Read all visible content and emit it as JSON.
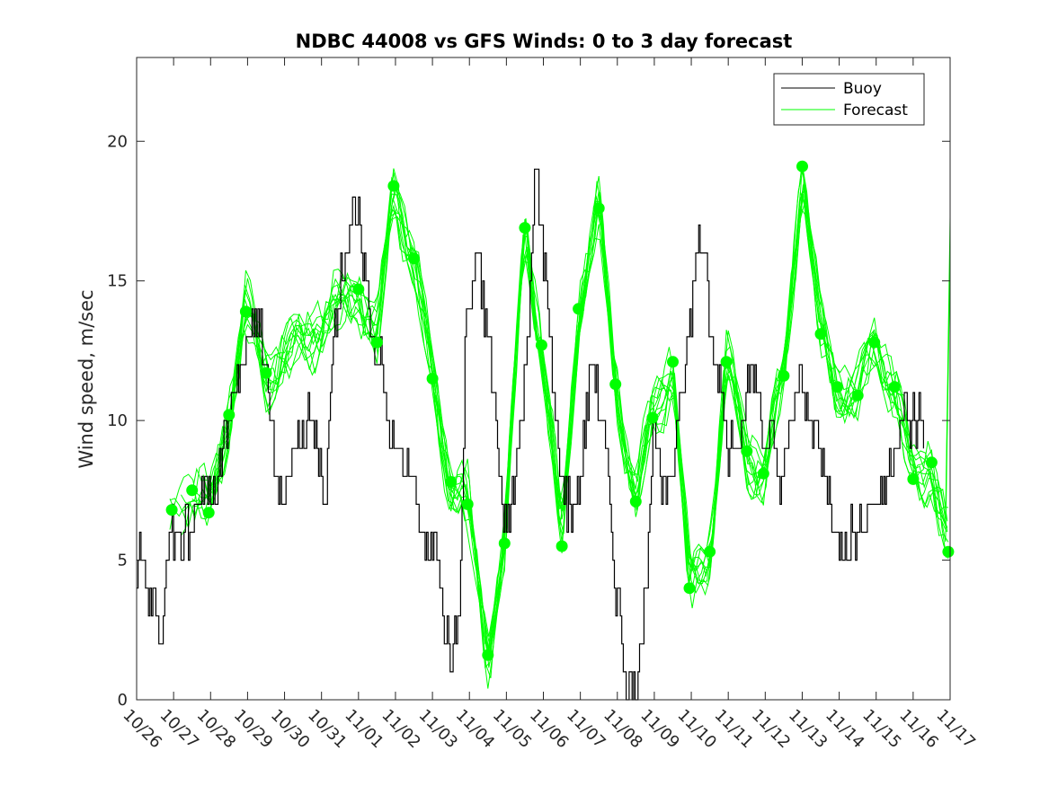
{
  "chart_data": {
    "type": "line",
    "title": "NDBC 44008 vs GFS Winds: 0 to 3 day forecast",
    "xlabel": "",
    "ylabel": "Wind speed, m/sec",
    "xlim": [
      0,
      22
    ],
    "ylim": [
      0,
      23
    ],
    "y_ticks": [
      0,
      5,
      10,
      15,
      20
    ],
    "x_tick_labels": [
      "10/26",
      "10/27",
      "10/28",
      "10/29",
      "10/30",
      "10/31",
      "11/01",
      "11/02",
      "11/03",
      "11/04",
      "11/05",
      "11/06",
      "11/07",
      "11/08",
      "11/09",
      "11/10",
      "11/11",
      "11/12",
      "11/13",
      "11/14",
      "11/15",
      "11/16",
      "11/17"
    ],
    "legend": {
      "placement": "top-right",
      "entries": [
        "Buoy",
        "Forecast"
      ]
    },
    "colors": {
      "buoy": "#000000",
      "forecast": "#00ff00",
      "markers": "#00ff00"
    },
    "buoy_trend": {
      "x": [
        0,
        0.1,
        0.2,
        0.35,
        0.5,
        0.6,
        0.65,
        0.72,
        0.8,
        1.0,
        1.2,
        1.5,
        1.8,
        2.0,
        2.5,
        3.0,
        3.2,
        3.4,
        3.6,
        3.8,
        4.0,
        4.3,
        4.6,
        4.8,
        5.0,
        5.1,
        5.2,
        5.3,
        5.5,
        5.8,
        6.0,
        6.2,
        6.4,
        6.6,
        6.8,
        7.0,
        7.3,
        7.6,
        7.9,
        8.1,
        8.3,
        8.5,
        8.6,
        8.7,
        8.8,
        8.9,
        9.0,
        9.2,
        9.4,
        9.6,
        9.8,
        10.0,
        10.2,
        10.4,
        10.6,
        10.8,
        11.0,
        11.2,
        11.4,
        11.6,
        11.8,
        12.0,
        12.3,
        12.6,
        12.9,
        13.2,
        13.5,
        13.8,
        14.0,
        14.2,
        14.4,
        14.6,
        14.8,
        15.0,
        15.2,
        15.4,
        15.6,
        15.8,
        16.0,
        16.2,
        16.4,
        16.6,
        16.8,
        17.0,
        17.2,
        17.4,
        17.6,
        17.8,
        18.0,
        18.3,
        18.6,
        18.9,
        19.2,
        19.5,
        19.8,
        20.0,
        20.3,
        20.6,
        20.9,
        21.1,
        21.3
      ],
      "values": [
        4,
        6,
        4,
        3,
        4,
        2,
        1,
        3,
        5,
        6,
        6,
        6,
        8,
        7,
        10,
        13,
        14,
        13,
        10,
        8,
        7,
        9,
        10,
        10,
        8,
        6,
        10,
        13,
        15,
        17,
        17,
        15,
        13,
        12,
        10,
        9,
        8,
        7,
        5,
        6,
        3,
        1,
        2,
        3,
        6,
        14,
        14,
        16,
        14,
        12,
        8,
        6,
        8,
        10,
        14,
        19,
        16,
        12,
        9,
        7,
        7,
        8,
        12,
        10,
        5,
        1,
        0,
        5,
        10,
        7,
        7,
        10,
        12,
        14,
        17,
        15,
        12,
        11,
        9,
        10,
        10,
        12,
        11,
        9,
        9,
        8,
        9,
        11,
        11,
        10,
        8,
        6,
        6,
        6,
        7,
        7,
        8,
        10,
        10,
        10,
        10
      ]
    },
    "forecast_markers": {
      "x": [
        0.95,
        1.5,
        1.95,
        2.5,
        2.95,
        3.5,
        6.0,
        6.5,
        6.95,
        7.5,
        8.0,
        8.5,
        8.95,
        9.5,
        9.95,
        10.5,
        10.95,
        11.5,
        11.95,
        12.5,
        12.95,
        13.5,
        13.95,
        14.5,
        14.95,
        15.5,
        15.95,
        16.5,
        16.95,
        17.5,
        18.0,
        18.5,
        18.95,
        19.5,
        19.95,
        20.5,
        21.0,
        21.5,
        21.95
      ],
      "values": [
        6.8,
        7.5,
        6.7,
        10.2,
        13.9,
        11.7,
        14.7,
        12.8,
        18.4,
        15.8,
        11.5,
        7.8,
        7.0,
        1.6,
        5.6,
        16.9,
        12.7,
        5.5,
        14.0,
        17.6,
        11.3,
        7.1,
        10.1,
        12.1,
        4.0,
        5.3,
        12.1,
        8.9,
        8.1,
        11.6,
        19.1,
        13.1,
        11.2,
        10.9,
        12.8,
        11.2,
        7.9,
        8.5,
        5.3
      ]
    },
    "forecast_runs_note": "12 forecast ensemble runs (0 to 3 day) spread around the marker path"
  }
}
